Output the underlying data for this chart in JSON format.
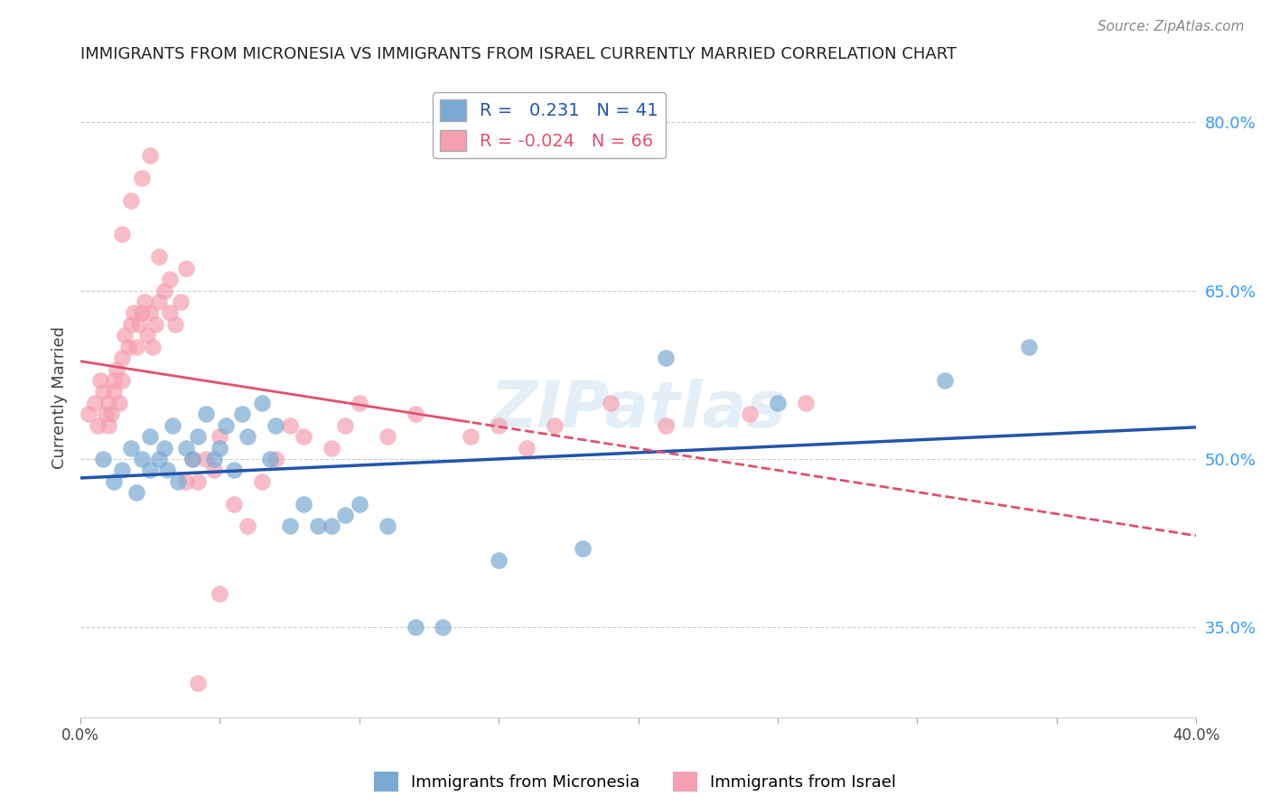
{
  "title": "IMMIGRANTS FROM MICRONESIA VS IMMIGRANTS FROM ISRAEL CURRENTLY MARRIED CORRELATION CHART",
  "source": "Source: ZipAtlas.com",
  "ylabel": "Currently Married",
  "yticks": [
    0.35,
    0.5,
    0.65,
    0.8
  ],
  "ytick_labels": [
    "35.0%",
    "50.0%",
    "65.0%",
    "80.0%"
  ],
  "xlim": [
    0.0,
    0.4
  ],
  "ylim": [
    0.27,
    0.84
  ],
  "r_micronesia": 0.231,
  "n_micronesia": 41,
  "r_israel": -0.024,
  "n_israel": 66,
  "color_micronesia": "#7aaad4",
  "color_israel": "#f4a0b0",
  "line_color_micronesia": "#2255aa",
  "line_color_israel": "#e05070",
  "background_color": "#ffffff",
  "watermark": "ZIPatlas",
  "micronesia_x": [
    0.008,
    0.012,
    0.015,
    0.018,
    0.02,
    0.022,
    0.025,
    0.025,
    0.028,
    0.03,
    0.031,
    0.033,
    0.035,
    0.038,
    0.04,
    0.042,
    0.045,
    0.048,
    0.05,
    0.052,
    0.055,
    0.058,
    0.06,
    0.065,
    0.068,
    0.07,
    0.075,
    0.08,
    0.085,
    0.09,
    0.095,
    0.1,
    0.11,
    0.12,
    0.13,
    0.15,
    0.18,
    0.21,
    0.25,
    0.31,
    0.34
  ],
  "micronesia_y": [
    0.5,
    0.48,
    0.49,
    0.51,
    0.47,
    0.5,
    0.49,
    0.52,
    0.5,
    0.51,
    0.49,
    0.53,
    0.48,
    0.51,
    0.5,
    0.52,
    0.54,
    0.5,
    0.51,
    0.53,
    0.49,
    0.54,
    0.52,
    0.55,
    0.5,
    0.53,
    0.44,
    0.46,
    0.44,
    0.44,
    0.45,
    0.46,
    0.44,
    0.35,
    0.35,
    0.41,
    0.42,
    0.59,
    0.55,
    0.57,
    0.6
  ],
  "israel_x": [
    0.003,
    0.005,
    0.006,
    0.007,
    0.008,
    0.009,
    0.01,
    0.01,
    0.011,
    0.012,
    0.012,
    0.013,
    0.014,
    0.015,
    0.015,
    0.016,
    0.017,
    0.018,
    0.019,
    0.02,
    0.021,
    0.022,
    0.023,
    0.024,
    0.025,
    0.026,
    0.027,
    0.028,
    0.03,
    0.032,
    0.034,
    0.036,
    0.038,
    0.04,
    0.042,
    0.045,
    0.048,
    0.05,
    0.055,
    0.06,
    0.065,
    0.07,
    0.075,
    0.08,
    0.09,
    0.095,
    0.1,
    0.11,
    0.12,
    0.14,
    0.15,
    0.16,
    0.17,
    0.19,
    0.21,
    0.24,
    0.26,
    0.015,
    0.018,
    0.022,
    0.025,
    0.028,
    0.032,
    0.038,
    0.042,
    0.05
  ],
  "israel_y": [
    0.54,
    0.55,
    0.53,
    0.57,
    0.56,
    0.54,
    0.53,
    0.55,
    0.54,
    0.57,
    0.56,
    0.58,
    0.55,
    0.57,
    0.59,
    0.61,
    0.6,
    0.62,
    0.63,
    0.6,
    0.62,
    0.63,
    0.64,
    0.61,
    0.63,
    0.6,
    0.62,
    0.64,
    0.65,
    0.63,
    0.62,
    0.64,
    0.48,
    0.5,
    0.48,
    0.5,
    0.49,
    0.52,
    0.46,
    0.44,
    0.48,
    0.5,
    0.53,
    0.52,
    0.51,
    0.53,
    0.55,
    0.52,
    0.54,
    0.52,
    0.53,
    0.51,
    0.53,
    0.55,
    0.53,
    0.54,
    0.55,
    0.7,
    0.73,
    0.75,
    0.77,
    0.68,
    0.66,
    0.67,
    0.3,
    0.38
  ]
}
